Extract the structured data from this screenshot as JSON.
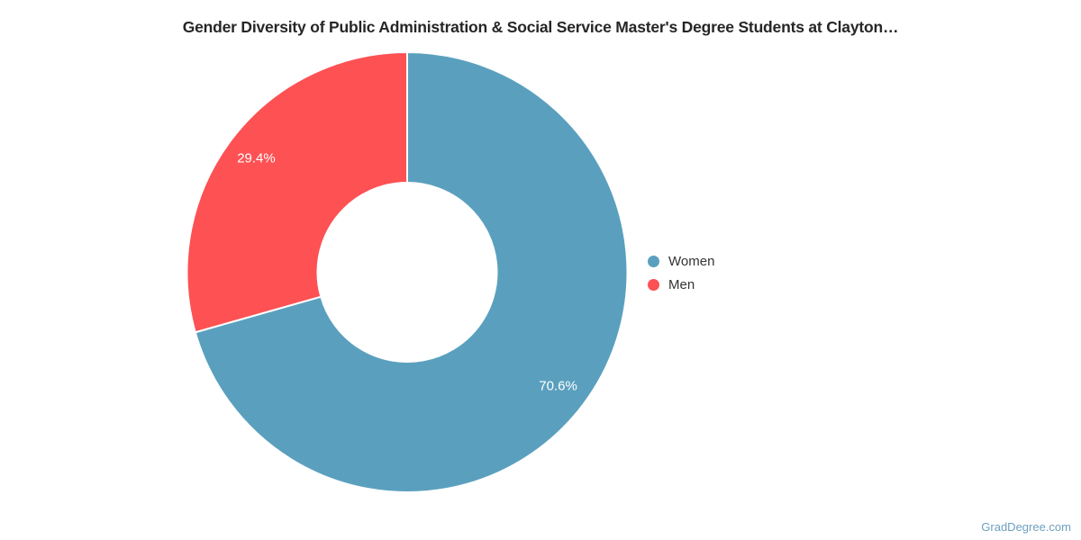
{
  "chart_data": {
    "type": "pie",
    "donut": true,
    "title": "Gender Diversity of Public Administration & Social Service Master's Degree Students at Clayton…",
    "start_angle_deg": 0,
    "direction": "clockwise",
    "legend_position": "right",
    "slice_border_color": "#ffffff",
    "label_color": "#ffffff",
    "series": [
      {
        "name": "Women",
        "value": 70.6,
        "label": "70.6%",
        "color": "#5AA0BE"
      },
      {
        "name": "Men",
        "value": 29.4,
        "label": "29.4%",
        "color": "#FD5154"
      }
    ]
  },
  "watermark": {
    "text": "GradDegree.com",
    "color": "#6FA0BF"
  }
}
